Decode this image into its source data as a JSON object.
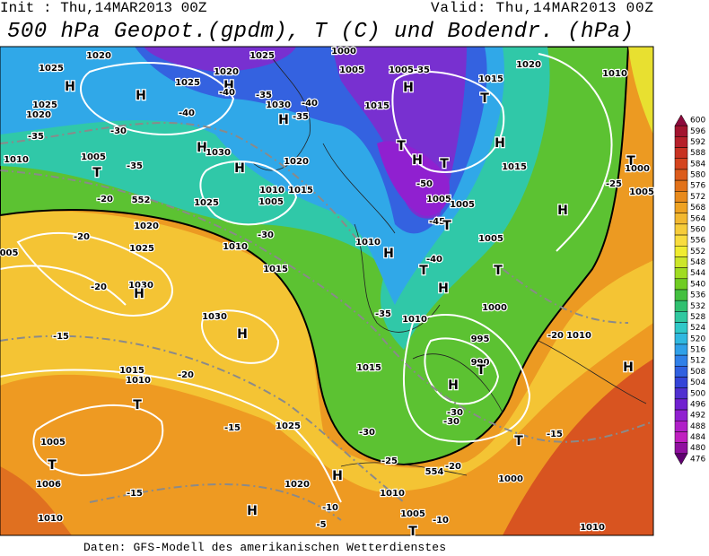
{
  "header": {
    "init": "Init : Thu,14MAR2013 00Z",
    "valid": "Valid: Thu,14MAR2013 00Z",
    "title": "500 hPa Geopot.(gpdm), T (C) und Bodendr. (hPa)"
  },
  "footer": "Daten: GFS-Modell des amerikanischen Wetterdienstes",
  "legend": {
    "levels": [
      600,
      596,
      592,
      588,
      584,
      580,
      576,
      572,
      568,
      564,
      560,
      556,
      552,
      548,
      544,
      540,
      536,
      532,
      528,
      524,
      520,
      516,
      512,
      508,
      504,
      500,
      496,
      492,
      488,
      484,
      480,
      476
    ],
    "colors": [
      "#8c0a3c",
      "#a2142f",
      "#b6202a",
      "#c83222",
      "#d4441e",
      "#dc5c1c",
      "#e2721a",
      "#e88a1c",
      "#eea222",
      "#f2b830",
      "#f6cc3a",
      "#f8dc3e",
      "#f0ec30",
      "#cce62a",
      "#a0dc22",
      "#70cc22",
      "#44c040",
      "#30c070",
      "#30c8a0",
      "#30c8c8",
      "#30b8e0",
      "#30a0e8",
      "#3080e8",
      "#3060e0",
      "#3444d8",
      "#5030d0",
      "#7020d0",
      "#9020d0",
      "#b020c8",
      "#c020c0",
      "#9010a0",
      "#600070"
    ]
  },
  "map": {
    "labels": [
      "1020",
      "1025",
      "H",
      "H",
      "1025",
      "1020",
      "H",
      "1025",
      "-40",
      "-35",
      "1030",
      "H",
      "-35",
      "1000",
      "1005",
      "1005",
      "-35",
      "1015",
      "1020",
      "1010",
      "H",
      "-40",
      "1015",
      "T",
      "1025",
      "1020",
      "-40",
      "-35",
      "-30",
      "H",
      "1030",
      "H",
      "T",
      "-35",
      "1005",
      "1010",
      "H",
      "T",
      "H",
      "T",
      "-50",
      "1005",
      "1005",
      "1015",
      "1020",
      "1015",
      "1010",
      "1005",
      "1025",
      "H",
      "T",
      "1000",
      "1005",
      "-25",
      "552",
      "-20",
      "1020",
      "1025",
      "-20",
      "-20",
      "1030",
      "H",
      "1010",
      "-30",
      "1015",
      "1010",
      "H",
      "-45",
      "T",
      "-40",
      "T",
      "H",
      "1005",
      "T",
      "1000",
      "-35",
      "1010",
      "995",
      "990",
      "T",
      "H",
      "1030",
      "H",
      "-15",
      "1015",
      "1010",
      "-20",
      "T",
      "1015",
      "-30",
      "-30",
      "-30",
      "1025",
      "-15",
      "1005",
      "T",
      "1006",
      "-15",
      "H",
      "-25",
      "554",
      "-20",
      "1020",
      "1010",
      "T",
      "-15",
      "1000",
      "H",
      "-10",
      "-5",
      "1005",
      "-10",
      "1010",
      "1010",
      "T",
      "H",
      "1010",
      "-20",
      "005"
    ]
  }
}
